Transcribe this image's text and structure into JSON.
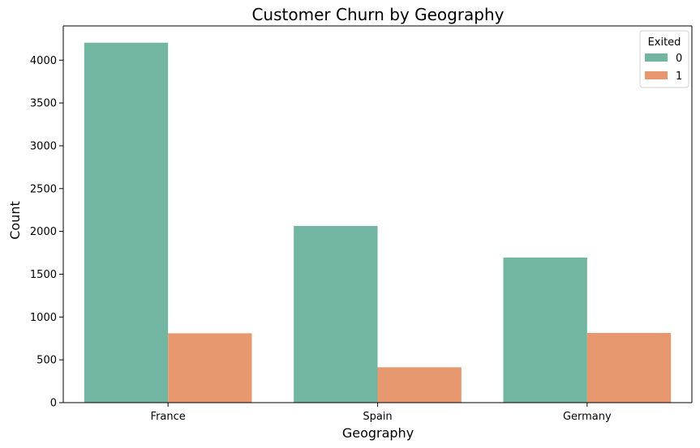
{
  "chart_data": {
    "type": "bar",
    "title": "Customer Churn by Geography",
    "xlabel": "Geography",
    "ylabel": "Count",
    "categories": [
      "France",
      "Spain",
      "Germany"
    ],
    "series": [
      {
        "name": "0",
        "values": [
          4204,
          2064,
          1695
        ],
        "color": "#72b5a0"
      },
      {
        "name": "1",
        "values": [
          810,
          413,
          814
        ],
        "color": "#e8986f"
      }
    ],
    "legend": {
      "title": "Exited",
      "position": "top-right"
    },
    "ylim": [
      0,
      4400
    ],
    "yticks": [
      0,
      500,
      1000,
      1500,
      2000,
      2500,
      3000,
      3500,
      4000
    ],
    "grid": false
  }
}
